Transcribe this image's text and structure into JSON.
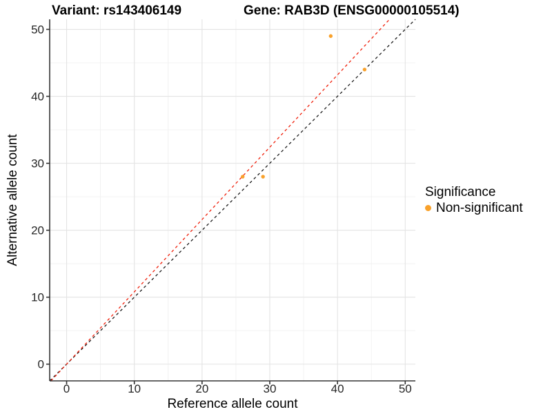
{
  "chart_data": {
    "type": "scatter",
    "title_left": "Variant: rs143406149",
    "title_right": "Gene: RAB3D (ENSG00000105514)",
    "xlabel": "Reference allele count",
    "ylabel": "Alternative allele count",
    "xlim": [
      -2.5,
      51.5
    ],
    "ylim": [
      -2.5,
      51.5
    ],
    "xticks": [
      0,
      10,
      20,
      30,
      40,
      50
    ],
    "yticks": [
      0,
      10,
      20,
      30,
      40,
      50
    ],
    "minor_xticks": [
      5,
      15,
      25,
      35,
      45
    ],
    "minor_yticks": [
      5,
      15,
      25,
      35,
      45
    ],
    "grid": "major+minor",
    "grid_color_major": "#E3E3E3",
    "grid_color_minor": "#F0F0F0",
    "axis_color": "#333333",
    "points": [
      {
        "x": 26,
        "y": 28,
        "series": "Non-significant"
      },
      {
        "x": 29,
        "y": 28,
        "series": "Non-significant"
      },
      {
        "x": 39,
        "y": 49,
        "series": "Non-significant"
      },
      {
        "x": 44,
        "y": 44,
        "series": "Non-significant"
      }
    ],
    "point_color": "#F9A12B",
    "point_radius": 2.7,
    "lines": [
      {
        "name": "identity-line",
        "slope": 1,
        "intercept": 0,
        "color": "#1A1A1A",
        "style": "dashed"
      },
      {
        "name": "allelic-ratio-line",
        "slope": 1.08,
        "intercept": 0,
        "color": "#F01F0A",
        "style": "dashed"
      }
    ],
    "legend": {
      "title": "Significance",
      "position": "right",
      "entries": [
        {
          "label": "Non-significant",
          "color": "#F9A12B"
        }
      ]
    }
  }
}
